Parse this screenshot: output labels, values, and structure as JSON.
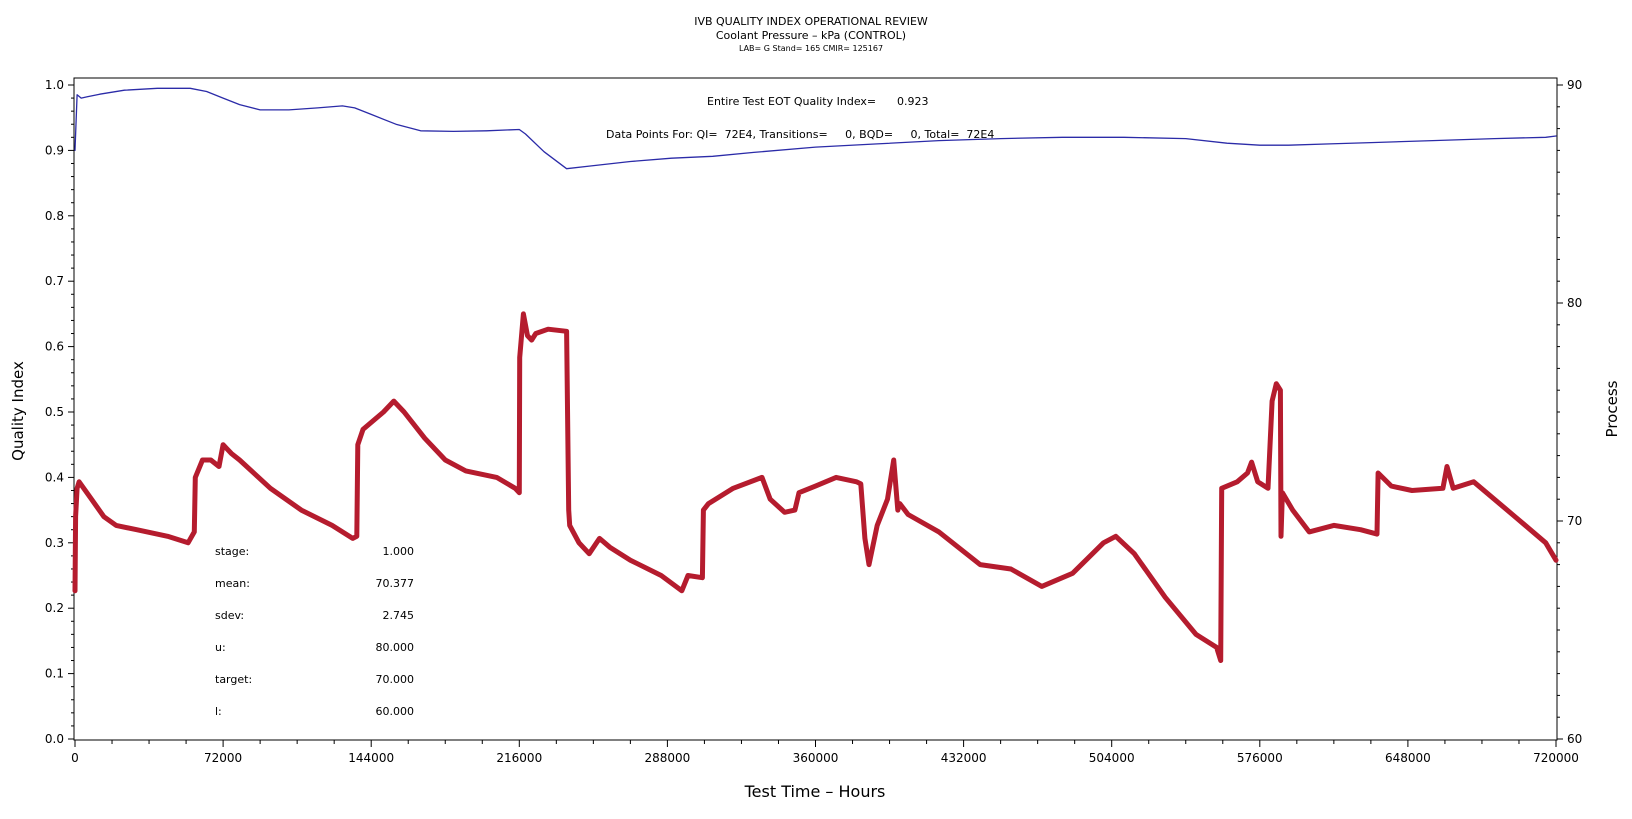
{
  "header": {
    "title": "IVB QUALITY INDEX OPERATIONAL REVIEW",
    "subtitle": "Coolant Pressure – kPa (CONTROL)",
    "meta": "LAB= G Stand= 165 CMIR= 125167"
  },
  "annotations": {
    "eot_label": "Entire Test EOT Quality Index=",
    "eot_value": "0.923",
    "points_label": "Data Points For: QI=  72E4, Transitions=     0, BQD=     0, Total=  72E4"
  },
  "stats": [
    {
      "label": "stage:",
      "value": "1.000"
    },
    {
      "label": "mean:",
      "value": "70.377"
    },
    {
      "label": "sdev:",
      "value": "2.745"
    },
    {
      "label": "u:",
      "value": "80.000"
    },
    {
      "label": "target:",
      "value": "70.000"
    },
    {
      "label": "l:",
      "value": "60.000"
    }
  ],
  "chart_data": {
    "type": "line",
    "xlabel": "Test Time – Hours",
    "ylabel_left": "Quality Index",
    "ylabel_right": "Process",
    "xlim": [
      0,
      720000
    ],
    "ylim_left": [
      0,
      1.0
    ],
    "ylim_right": [
      60,
      90
    ],
    "x_ticks": [
      0,
      72000,
      144000,
      216000,
      288000,
      360000,
      432000,
      504000,
      576000,
      648000,
      720000
    ],
    "y_left_ticks": [
      "0.0",
      "0.1",
      "0.2",
      "0.3",
      "0.4",
      "0.5",
      "0.6",
      "0.7",
      "0.8",
      "0.9",
      "1.0"
    ],
    "y_right_ticks": [
      60,
      70,
      80,
      90
    ],
    "grid": false,
    "series": [
      {
        "axis": "left",
        "color": "#2b2ba8",
        "x": [
          0,
          1000,
          3000,
          6000,
          12000,
          24000,
          40000,
          56000,
          64000,
          72000,
          80000,
          90000,
          104000,
          118000,
          130000,
          136000,
          144000,
          156000,
          168000,
          184000,
          200000,
          216000,
          219000,
          228000,
          239000,
          250000,
          270000,
          290000,
          310000,
          330000,
          360000,
          390000,
          420000,
          450000,
          480000,
          510000,
          540000,
          560000,
          576000,
          590000,
          610000,
          630000,
          660000,
          690000,
          715000,
          720000
        ],
        "y": [
          0.9,
          0.985,
          0.98,
          0.982,
          0.986,
          0.992,
          0.995,
          0.995,
          0.99,
          0.98,
          0.97,
          0.962,
          0.962,
          0.965,
          0.968,
          0.965,
          0.955,
          0.94,
          0.93,
          0.929,
          0.93,
          0.932,
          0.925,
          0.898,
          0.872,
          0.876,
          0.883,
          0.888,
          0.891,
          0.897,
          0.905,
          0.91,
          0.915,
          0.918,
          0.92,
          0.92,
          0.918,
          0.911,
          0.908,
          0.908,
          0.91,
          0.912,
          0.915,
          0.918,
          0.92,
          0.922
        ]
      },
      {
        "axis": "right",
        "color": "#b51c2e",
        "x": [
          0,
          300,
          1000,
          2000,
          8000,
          14000,
          20000,
          30000,
          45000,
          55000,
          58000,
          58500,
          62000,
          66000,
          70000,
          72000,
          74000,
          76000,
          80000,
          95000,
          110000,
          125000,
          135000,
          137000,
          137500,
          140000,
          150000,
          155000,
          160000,
          170000,
          180000,
          190000,
          205000,
          214000,
          216000,
          216200,
          218000,
          220000,
          222000,
          224000,
          230000,
          239000,
          240000,
          240500,
          245000,
          250000,
          255000,
          260000,
          270000,
          285000,
          295000,
          298000,
          305000,
          305500,
          308000,
          320000,
          334000,
          338000,
          345000,
          350000,
          352000,
          360000,
          370000,
          380000,
          382000,
          384000,
          386000,
          390000,
          395000,
          398000,
          400000,
          401000,
          405000,
          420000,
          440000,
          455000,
          470000,
          485000,
          500000,
          506000,
          515000,
          530000,
          545000,
          555000,
          557000,
          557500,
          565000,
          570000,
          572000,
          575000,
          580000,
          582000,
          584000,
          586000,
          586300,
          587000,
          592000,
          600000,
          612000,
          625000,
          633000,
          633500,
          640000,
          650000,
          665000,
          667000,
          670000,
          680000,
          700000,
          715000,
          720000
        ],
        "y": [
          66.8,
          70.2,
          71.5,
          71.8,
          71.0,
          70.2,
          69.8,
          69.6,
          69.3,
          69.0,
          69.5,
          72.0,
          72.8,
          72.8,
          72.5,
          73.5,
          73.3,
          73.1,
          72.8,
          71.5,
          70.5,
          69.8,
          69.2,
          69.3,
          73.5,
          74.2,
          75.0,
          75.5,
          75.0,
          73.8,
          72.8,
          72.3,
          72.0,
          71.5,
          71.3,
          77.5,
          79.5,
          78.5,
          78.3,
          78.6,
          78.8,
          78.7,
          70.5,
          69.8,
          69.0,
          68.5,
          69.2,
          68.8,
          68.2,
          67.5,
          66.8,
          67.5,
          67.4,
          70.5,
          70.8,
          71.5,
          72.0,
          71.0,
          70.4,
          70.5,
          71.3,
          71.6,
          72.0,
          71.8,
          71.7,
          69.2,
          68.0,
          69.8,
          71.0,
          72.8,
          70.5,
          70.8,
          70.3,
          69.5,
          68.0,
          67.8,
          67.0,
          67.6,
          69.0,
          69.3,
          68.5,
          66.5,
          64.8,
          64.2,
          63.6,
          71.5,
          71.8,
          72.2,
          72.7,
          71.8,
          71.5,
          75.5,
          76.3,
          76.0,
          69.3,
          71.3,
          70.5,
          69.5,
          69.8,
          69.6,
          69.4,
          72.2,
          71.6,
          71.4,
          71.5,
          72.5,
          71.5,
          71.8,
          70.2,
          69.0,
          68.2
        ]
      }
    ]
  }
}
